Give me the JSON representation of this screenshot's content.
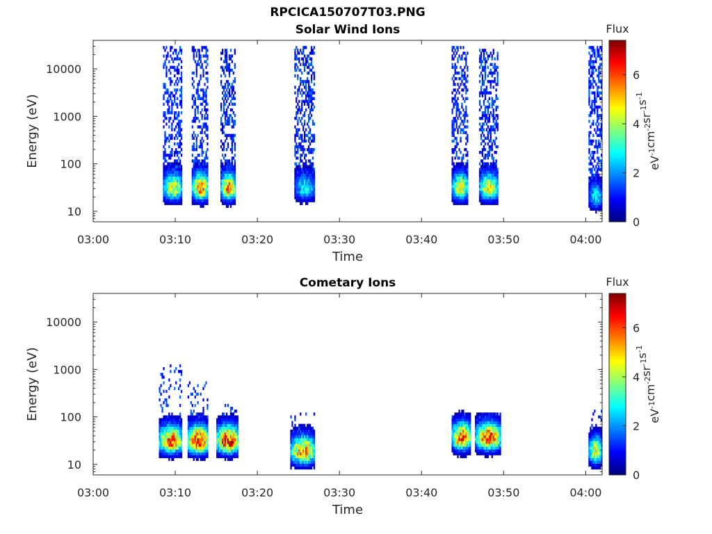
{
  "figure": {
    "title": "RPCICA150707T03.PNG"
  },
  "colorbar": {
    "stops": [
      "#00007F",
      "#0000FF",
      "#007FFF",
      "#00FFFF",
      "#7FFF7F",
      "#FFFF00",
      "#FF7F00",
      "#FF0000",
      "#7F0000"
    ]
  },
  "chart_data": [
    {
      "type": "heatmap",
      "title": "Solar Wind Ions",
      "xlabel": "Time",
      "ylabel": "Energy (eV)",
      "x_ticks": [
        "03:00",
        "03:10",
        "03:20",
        "03:30",
        "03:40",
        "03:50",
        "04:00"
      ],
      "xlim": [
        "03:00",
        "04:02"
      ],
      "y_scale": "log",
      "y_ticks": [
        10,
        100,
        1000,
        10000
      ],
      "y_tick_labels": [
        "10",
        "100",
        "1000",
        "10000"
      ],
      "ylim": [
        6,
        40000
      ],
      "colorbar": {
        "title": "Flux",
        "label": "eV-1cm-2sr-1s-1",
        "range": [
          0,
          7.4
        ],
        "ticks": [
          0,
          2,
          4,
          6
        ],
        "tick_labels": [
          "0",
          "2",
          "4",
          "6"
        ]
      },
      "bursts": [
        {
          "start": "03:08:30",
          "end": "03:10:50",
          "peak_energy_ev": 30,
          "max_energy_ev": 30000,
          "peak_flux": 5.0
        },
        {
          "start": "03:12:00",
          "end": "03:14:00",
          "peak_energy_ev": 30,
          "max_energy_ev": 30000,
          "peak_flux": 6.0
        },
        {
          "start": "03:15:30",
          "end": "03:17:20",
          "peak_energy_ev": 30,
          "max_energy_ev": 25000,
          "peak_flux": 6.0
        },
        {
          "start": "03:24:30",
          "end": "03:27:00",
          "peak_energy_ev": 30,
          "max_energy_ev": 30000,
          "peak_flux": 3.0
        },
        {
          "start": "03:43:40",
          "end": "03:45:40",
          "peak_energy_ev": 30,
          "max_energy_ev": 30000,
          "peak_flux": 5.0
        },
        {
          "start": "03:47:00",
          "end": "03:49:20",
          "peak_energy_ev": 30,
          "max_energy_ev": 25000,
          "peak_flux": 5.0
        },
        {
          "start": "04:00:20",
          "end": "04:02:00",
          "peak_energy_ev": 20,
          "max_energy_ev": 30000,
          "peak_flux": 3.0
        }
      ]
    },
    {
      "type": "heatmap",
      "title": "Cometary Ions",
      "xlabel": "Time",
      "ylabel": "Energy (eV)",
      "x_ticks": [
        "03:00",
        "03:10",
        "03:20",
        "03:30",
        "03:40",
        "03:50",
        "04:00"
      ],
      "xlim": [
        "03:00",
        "04:02"
      ],
      "y_scale": "log",
      "y_ticks": [
        10,
        100,
        1000,
        10000
      ],
      "y_tick_labels": [
        "10",
        "100",
        "1000",
        "10000"
      ],
      "ylim": [
        6,
        40000
      ],
      "colorbar": {
        "title": "Flux",
        "label": "eV-1cm-2sr-1s-1",
        "range": [
          0,
          7.4
        ],
        "ticks": [
          0,
          2,
          4,
          6
        ],
        "tick_labels": [
          "0",
          "2",
          "4",
          "6"
        ]
      },
      "bursts": [
        {
          "start": "03:08:00",
          "end": "03:10:50",
          "peak_energy_ev": 30,
          "max_energy_ev": 1200,
          "peak_flux": 6.5
        },
        {
          "start": "03:11:30",
          "end": "03:14:00",
          "peak_energy_ev": 30,
          "max_energy_ev": 600,
          "peak_flux": 7.3
        },
        {
          "start": "03:15:00",
          "end": "03:17:40",
          "peak_energy_ev": 30,
          "max_energy_ev": 200,
          "peak_flux": 7.3
        },
        {
          "start": "03:24:00",
          "end": "03:27:00",
          "peak_energy_ev": 18,
          "max_energy_ev": 120,
          "peak_flux": 6.0
        },
        {
          "start": "03:43:40",
          "end": "03:46:00",
          "peak_energy_ev": 35,
          "max_energy_ev": 150,
          "peak_flux": 6.5
        },
        {
          "start": "03:46:30",
          "end": "03:49:40",
          "peak_energy_ev": 35,
          "max_energy_ev": 120,
          "peak_flux": 6.5
        },
        {
          "start": "04:00:20",
          "end": "04:02:00",
          "peak_energy_ev": 18,
          "max_energy_ev": 150,
          "peak_flux": 5.0
        }
      ]
    }
  ]
}
